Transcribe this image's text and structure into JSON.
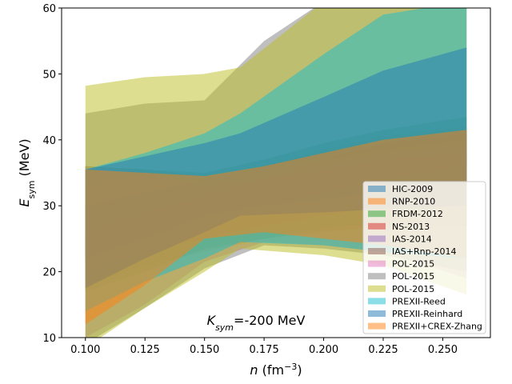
{
  "chart_data": {
    "type": "area",
    "xlabel": "n (fm⁻³)",
    "ylabel": "E_sym (MeV)",
    "xlim": [
      0.09,
      0.27
    ],
    "ylim": [
      10,
      60
    ],
    "xticks": [
      "0.100",
      "0.125",
      "0.150",
      "0.175",
      "0.200",
      "0.225",
      "0.250"
    ],
    "yticks": [
      "10",
      "20",
      "30",
      "40",
      "50",
      "60"
    ],
    "annotation": "K_sym=-200 MeV",
    "legend_position": "lower right",
    "grid": false,
    "series": [
      {
        "name": "HIC-2009",
        "color": "#1f77b4",
        "x": [
          0.1,
          0.125,
          0.15,
          0.175,
          0.2,
          0.225,
          0.26
        ],
        "upper": [
          29,
          31.5,
          34,
          36,
          38,
          39.5,
          41
        ],
        "lower": [
          22,
          25.5,
          28.5,
          30,
          31,
          32,
          33
        ]
      },
      {
        "name": "RNP-2010",
        "color": "#ff7f0e",
        "x": [
          0.1,
          0.125,
          0.15,
          0.175,
          0.2,
          0.225,
          0.26
        ],
        "upper": [
          36,
          35.5,
          34.5,
          36,
          38.5,
          40.5,
          42
        ],
        "lower": [
          18,
          21,
          23,
          25,
          26,
          27,
          27
        ]
      },
      {
        "name": "FRDM-2012",
        "color": "#2ca02c",
        "x": [
          0.1,
          0.125,
          0.15,
          0.175,
          0.2,
          0.225,
          0.26
        ],
        "upper": [
          36,
          35.5,
          35,
          37,
          39.5,
          41.5,
          43.5
        ],
        "lower": [
          17,
          20,
          23.5,
          25,
          26.5,
          27.5,
          27
        ]
      },
      {
        "name": "NS-2013",
        "color": "#d62728",
        "x": [
          0.1,
          0.125,
          0.15,
          0.175,
          0.2,
          0.225,
          0.26
        ],
        "upper": [
          33,
          35,
          33,
          34,
          35.5,
          37,
          38
        ],
        "lower": [
          20,
          23,
          25,
          27,
          28.5,
          30,
          29
        ]
      },
      {
        "name": "IAS-2014",
        "color": "#9467bd",
        "x": [
          0.1,
          0.125,
          0.15,
          0.175,
          0.2,
          0.225,
          0.26
        ],
        "upper": [
          30,
          32,
          34,
          35.5,
          37,
          38.5,
          40
        ],
        "lower": [
          22,
          26,
          29.5,
          31,
          32,
          33,
          33.5
        ]
      },
      {
        "name": "IAS+Rnp-2014",
        "color": "#8c564b",
        "x": [
          0.1,
          0.125,
          0.15,
          0.175,
          0.2,
          0.225,
          0.26
        ],
        "upper": [
          26,
          29,
          31.5,
          34,
          37,
          39.5,
          41.5
        ],
        "lower": [
          22,
          25,
          28.5,
          30.5,
          32,
          34,
          36
        ]
      },
      {
        "name": "POL-2015",
        "color": "#e377c2",
        "x": [
          0.1,
          0.125,
          0.15,
          0.175,
          0.2,
          0.225,
          0.26
        ],
        "upper": [
          36,
          35,
          33,
          34,
          36,
          38,
          39
        ],
        "lower": [
          10,
          15,
          21.5,
          24.5,
          24,
          23,
          19
        ]
      },
      {
        "name": "POL-2015",
        "color": "#7f7f7f",
        "x": [
          0.1,
          0.125,
          0.15,
          0.175,
          0.2,
          0.225,
          0.26
        ],
        "upper": [
          44,
          45.5,
          46,
          55,
          61,
          61,
          61
        ],
        "lower": [
          9,
          14.5,
          20.5,
          24,
          23.5,
          22.5,
          20
        ]
      },
      {
        "name": "POL-2015",
        "color": "#bcbd22",
        "x": [
          0.1,
          0.125,
          0.15,
          0.165,
          0.2,
          0.225,
          0.26
        ],
        "upper": [
          48.2,
          49.5,
          50,
          51,
          61,
          61,
          61
        ],
        "lower": [
          8.5,
          14.5,
          20,
          23.5,
          22.5,
          21,
          16.5
        ]
      },
      {
        "name": "PREXII-Reed",
        "color": "#17becf",
        "x": [
          0.1,
          0.125,
          0.15,
          0.165,
          0.2,
          0.225,
          0.26
        ],
        "upper": [
          35.5,
          38,
          41,
          44,
          53,
          59,
          61
        ],
        "lower": [
          14,
          18.5,
          22,
          24.5,
          24,
          23,
          22
        ]
      },
      {
        "name": "PREXII-Reinhard",
        "color": "#1f77b4",
        "x": [
          0.1,
          0.125,
          0.15,
          0.165,
          0.2,
          0.225,
          0.26
        ],
        "upper": [
          35.5,
          37.5,
          39.5,
          41,
          46.5,
          50.5,
          54
        ],
        "lower": [
          17.5,
          22,
          26,
          28.5,
          29,
          29.5,
          30
        ]
      },
      {
        "name": "PREXII+CREX-Zhang",
        "color": "#ff7f0e",
        "x": [
          0.1,
          0.125,
          0.15,
          0.175,
          0.2,
          0.225,
          0.26
        ],
        "upper": [
          35.5,
          35,
          34.5,
          36,
          38,
          40,
          41.5
        ],
        "lower": [
          12,
          18,
          25,
          26,
          25,
          24,
          22
        ]
      }
    ]
  }
}
